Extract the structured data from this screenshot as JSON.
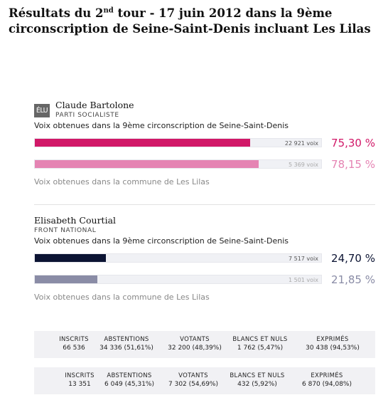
{
  "title": {
    "prefix": "Résultats du 2",
    "sup": "nd",
    "suffix": " tour - 17 juin 2012 dans la 9ème circonscription de Seine-Saint-Denis incluant Les Lilas"
  },
  "captions": {
    "circ": "Voix obtenues dans la 9ème circonscription de Seine-Saint-Denis",
    "commune": "Voix obtenues dans la commune de Les Lilas"
  },
  "candidates": [
    {
      "badge": "ÉLU",
      "name": "Claude Bartolone",
      "party": "PARTI SOCIALISTE",
      "circ": {
        "votes": "22 921 voix",
        "pct": "75,30 %",
        "fraction": 0.753,
        "color": "#d11868"
      },
      "commune": {
        "votes": "5 369 voix",
        "pct": "78,15 %",
        "fraction": 0.7815,
        "color": "#e584b3"
      }
    },
    {
      "name": "Elisabeth Courtial",
      "party": "FRONT NATIONAL",
      "circ": {
        "votes": "7 517 voix",
        "pct": "24,70 %",
        "fraction": 0.247,
        "color": "#0c1433"
      },
      "commune": {
        "votes": "1 501 voix",
        "pct": "21,85 %",
        "fraction": 0.2185,
        "color": "#8a8ca6"
      }
    }
  ],
  "stats": [
    {
      "labels": [
        "INSCRITS",
        "ABSTENTIONS",
        "VOTANTS",
        "BLANCS ET NULS",
        "EXPRIMÉS"
      ],
      "values": [
        "66 536",
        "34 336 (51,61%)",
        "32 200 (48,39%)",
        "1 762 (5,47%)",
        "30 438 (94,53%)"
      ]
    },
    {
      "labels": [
        "INSCRITS",
        "ABSTENTIONS",
        "VOTANTS",
        "BLANCS ET NULS",
        "EXPRIMÉS"
      ],
      "values": [
        "13 351",
        "6 049 (45,31%)",
        "7 302 (54,69%)",
        "432 (5,92%)",
        "6 870 (94,08%)"
      ]
    }
  ]
}
